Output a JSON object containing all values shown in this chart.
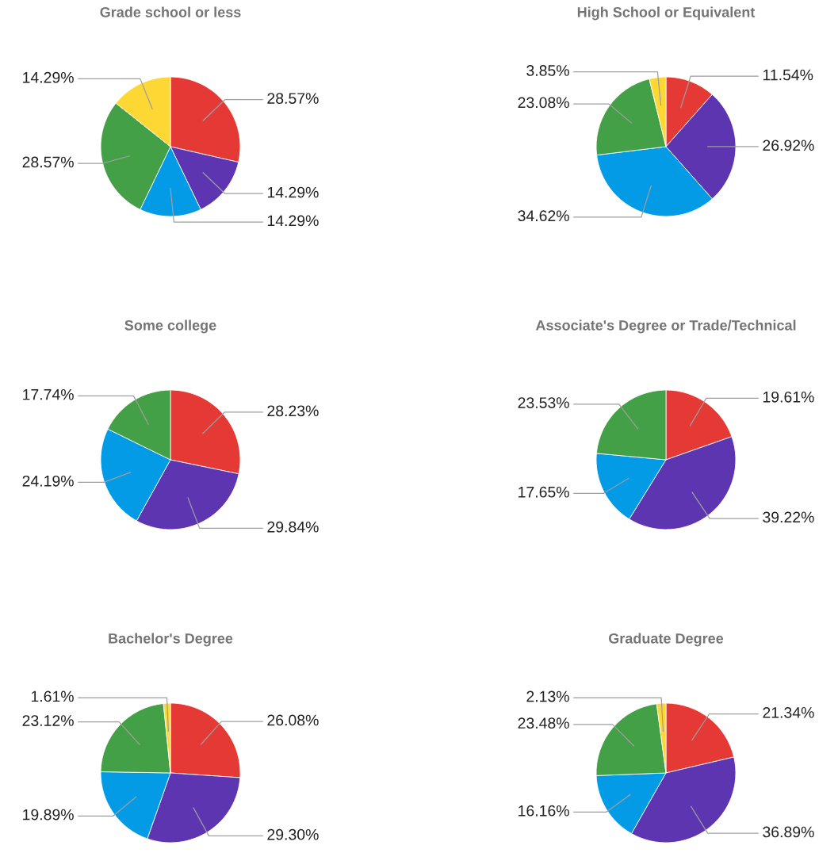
{
  "chart_data": [
    {
      "type": "pie",
      "title": "Grade school or less",
      "categories": [
        null,
        null,
        null,
        null,
        null
      ],
      "values": [
        28.57,
        14.29,
        14.29,
        28.57,
        14.29
      ],
      "colors": [
        "#e53935",
        "#5e35b1",
        "#039be5",
        "#43a047",
        "#fdd835"
      ],
      "value_labels": [
        "28.57%",
        "14.29%",
        "14.29%",
        "28.57%",
        "14.29%"
      ]
    },
    {
      "type": "pie",
      "title": "High School or Equivalent",
      "categories": [
        null,
        null,
        null,
        null,
        null
      ],
      "values": [
        11.54,
        26.92,
        34.62,
        23.08,
        3.85
      ],
      "colors": [
        "#e53935",
        "#5e35b1",
        "#039be5",
        "#43a047",
        "#fdd835"
      ],
      "value_labels": [
        "11.54%",
        "26.92%",
        "34.62%",
        "23.08%",
        "3.85%"
      ]
    },
    {
      "type": "pie",
      "title": "Some college",
      "categories": [
        null,
        null,
        null,
        null
      ],
      "values": [
        28.23,
        29.84,
        24.19,
        17.74
      ],
      "colors": [
        "#e53935",
        "#5e35b1",
        "#039be5",
        "#43a047"
      ],
      "value_labels": [
        "28.23%",
        "29.84%",
        "24.19%",
        "17.74%"
      ]
    },
    {
      "type": "pie",
      "title": "Associate's Degree or Trade/Technical",
      "categories": [
        null,
        null,
        null,
        null
      ],
      "values": [
        19.61,
        39.22,
        17.65,
        23.53
      ],
      "colors": [
        "#e53935",
        "#5e35b1",
        "#039be5",
        "#43a047"
      ],
      "value_labels": [
        "19.61%",
        "39.22%",
        "17.65%",
        "23.53%"
      ]
    },
    {
      "type": "pie",
      "title": "Bachelor's Degree",
      "categories": [
        null,
        null,
        null,
        null,
        null
      ],
      "values": [
        26.08,
        29.3,
        19.89,
        23.12,
        1.61
      ],
      "colors": [
        "#e53935",
        "#5e35b1",
        "#039be5",
        "#43a047",
        "#fdd835"
      ],
      "value_labels": [
        "26.08%",
        "29.30%",
        "19.89%",
        "23.12%",
        "1.61%"
      ]
    },
    {
      "type": "pie",
      "title": "Graduate Degree",
      "categories": [
        null,
        null,
        null,
        null,
        null
      ],
      "values": [
        21.34,
        36.89,
        16.16,
        23.48,
        2.13
      ],
      "colors": [
        "#e53935",
        "#5e35b1",
        "#039be5",
        "#43a047",
        "#fdd835"
      ],
      "value_labels": [
        "21.34%",
        "36.89%",
        "16.16%",
        "23.48%",
        "2.13%"
      ]
    }
  ]
}
